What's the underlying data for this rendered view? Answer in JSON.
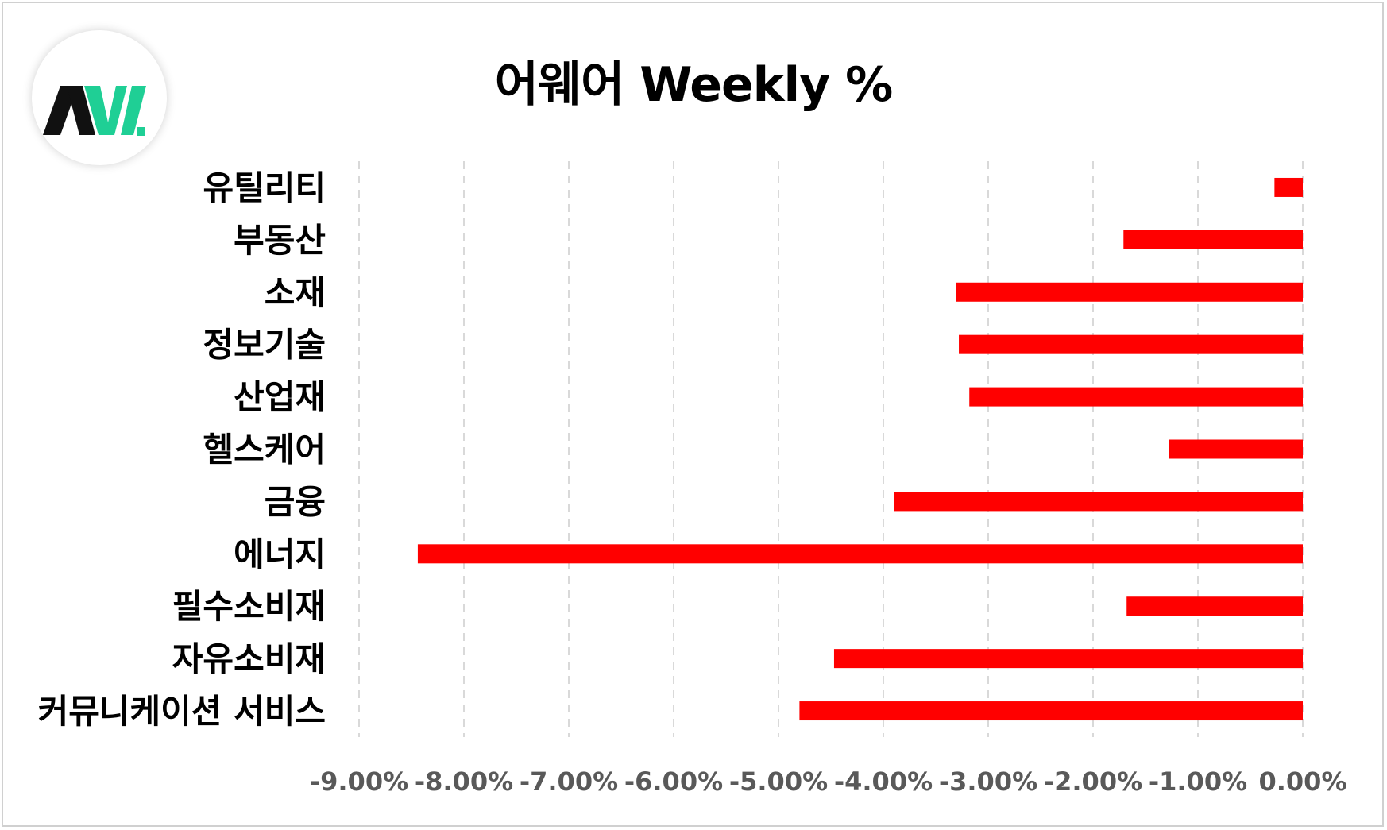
{
  "chart_data": {
    "type": "bar",
    "orientation": "horizontal",
    "title": "어웨어 Weekly %",
    "categories": [
      "유틸리티",
      "부동산",
      "소재",
      "정보기술",
      "산업재",
      "헬스케어",
      "금융",
      "에너지",
      "필수소비재",
      "자유소비재",
      "커뮤니케이션 서비스"
    ],
    "values": [
      -0.27,
      -1.71,
      -3.31,
      -3.28,
      -3.18,
      -1.28,
      -3.9,
      -8.44,
      -1.68,
      -4.47,
      -4.8
    ],
    "xlim": [
      -9,
      0
    ],
    "xticks": [
      "-9.00%",
      "-8.00%",
      "-7.00%",
      "-6.00%",
      "-5.00%",
      "-4.00%",
      "-3.00%",
      "-2.00%",
      "-1.00%",
      "0.00%"
    ],
    "grid": "vertical-dashed",
    "legend": "none",
    "bar_color": "#ff0000",
    "grid_color": "#d9d9d9",
    "tick_label_color": "#595959"
  },
  "logo": {
    "text": "AW.",
    "colors": {
      "dark": "#111111",
      "accent": "#1fcf95"
    }
  }
}
